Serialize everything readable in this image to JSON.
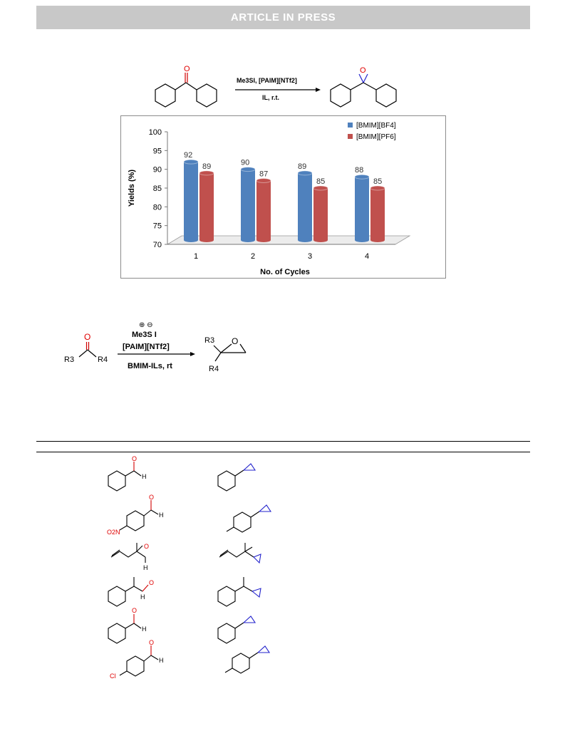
{
  "header": {
    "banner_text": "ARTICLE IN PRESS"
  },
  "scheme1": {
    "reagent_top": "Me3SI, [PAIM][NTf2]",
    "reagent_bottom": "IL, r.t.",
    "ketone_oxygen": "O",
    "epoxide_oxygen": "O"
  },
  "chart_data": {
    "type": "bar",
    "categories": [
      "1",
      "2",
      "3",
      "4"
    ],
    "series": [
      {
        "name": "[BMIM][BF4]",
        "values": [
          92,
          90,
          89,
          88
        ],
        "color": "#4f81bd"
      },
      {
        "name": "[BMIM][PF6]",
        "values": [
          89,
          87,
          85,
          85
        ],
        "color": "#c0504d"
      }
    ],
    "xlabel": "No. of Cycles",
    "ylabel": "Yields (%)",
    "ylim": [
      70,
      100
    ],
    "yticks": [
      "70",
      "75",
      "80",
      "85",
      "90",
      "95",
      "100"
    ],
    "legend_position": "top-right",
    "grid": false,
    "style": "3d-cylinder"
  },
  "scheme2": {
    "reagent_cation": "Me3S I",
    "reagent_mid": "[PAIM][NTf2]",
    "reagent_bottom": "BMIM-ILs, rt",
    "sm_R3": "R3",
    "sm_R4": "R4",
    "sm_oxygen": "O",
    "prod_R3": "R3",
    "prod_R4": "R4",
    "prod_oxygen": "O"
  },
  "table_structures": {
    "row1": {
      "o": "O",
      "h": "H"
    },
    "row2": {
      "o": "O",
      "h": "H",
      "sub": "O2N"
    },
    "row3": {
      "o": "O",
      "h": "H"
    },
    "row4": {
      "o": "O",
      "h": "H"
    },
    "row5": {
      "o": "O",
      "h": "H"
    },
    "row6": {
      "o": "O",
      "h": "H",
      "sub": "Cl"
    }
  },
  "colors": {
    "heteroatom": "#e00000",
    "epoxide": "#2222cc"
  }
}
